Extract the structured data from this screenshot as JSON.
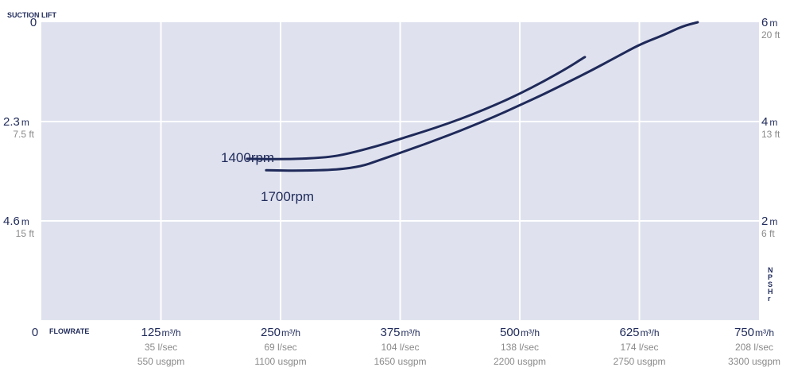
{
  "chart_data": {
    "type": "line",
    "left_axis_title": "SUCTION LIFT",
    "x_axis_title": "FLOWRATE",
    "right_axis_title": "NPSHr",
    "xlim": [
      0,
      750
    ],
    "x_ticks": [
      {
        "value": 0,
        "label": "0",
        "unit": "",
        "lsec": "",
        "usgpm": ""
      },
      {
        "value": 125,
        "label": "125",
        "unit": "m³/h",
        "lsec": "35 l/sec",
        "usgpm": "550 usgpm"
      },
      {
        "value": 250,
        "label": "250",
        "unit": "m³/h",
        "lsec": "69 l/sec",
        "usgpm": "1100 usgpm"
      },
      {
        "value": 375,
        "label": "375",
        "unit": "m³/h",
        "lsec": "104 l/sec",
        "usgpm": "1650 usgpm"
      },
      {
        "value": 500,
        "label": "500",
        "unit": "m³/h",
        "lsec": "138 l/sec",
        "usgpm": "2200 usgpm"
      },
      {
        "value": 625,
        "label": "625",
        "unit": "m³/h",
        "lsec": "174 l/sec",
        "usgpm": "2750 usgpm"
      },
      {
        "value": 750,
        "label": "750",
        "unit": "m³/h",
        "lsec": "208 l/sec",
        "usgpm": "3300 usgpm"
      }
    ],
    "left_axis": {
      "ylim": [
        0,
        6.9
      ],
      "ticks": [
        {
          "value": 0,
          "label": "0",
          "unit": "",
          "ft": ""
        },
        {
          "value": 2.3,
          "label": "2.3",
          "unit": "m",
          "ft": "7.5 ft"
        },
        {
          "value": 4.6,
          "label": "4.6",
          "unit": "m",
          "ft": "15 ft"
        }
      ]
    },
    "right_axis": {
      "ylim": [
        0,
        6
      ],
      "ticks": [
        {
          "value": 6,
          "label": "6",
          "unit": "m",
          "ft": "20 ft"
        },
        {
          "value": 4,
          "label": "4",
          "unit": "m",
          "ft": "13 ft"
        },
        {
          "value": 2,
          "label": "2",
          "unit": "m",
          "ft": "6 ft"
        }
      ]
    },
    "series": [
      {
        "name": "1400rpm",
        "axis": "right",
        "x": [
          215,
          260,
          300,
          320,
          350,
          375,
          400,
          425,
          450,
          475,
          500,
          525,
          550,
          568
        ],
        "y": [
          3.25,
          3.24,
          3.28,
          3.35,
          3.5,
          3.65,
          3.8,
          3.96,
          4.14,
          4.34,
          4.56,
          4.81,
          5.08,
          5.3
        ]
      },
      {
        "name": "1700rpm",
        "axis": "right",
        "x": [
          235,
          270,
          310,
          335,
          350,
          375,
          400,
          425,
          450,
          475,
          500,
          525,
          550,
          575,
          600,
          625,
          650,
          670,
          686
        ],
        "y": [
          3.02,
          3.01,
          3.03,
          3.1,
          3.2,
          3.37,
          3.54,
          3.72,
          3.91,
          4.11,
          4.33,
          4.55,
          4.79,
          5.03,
          5.29,
          5.55,
          5.74,
          5.92,
          6.0
        ]
      }
    ],
    "grid": true
  }
}
